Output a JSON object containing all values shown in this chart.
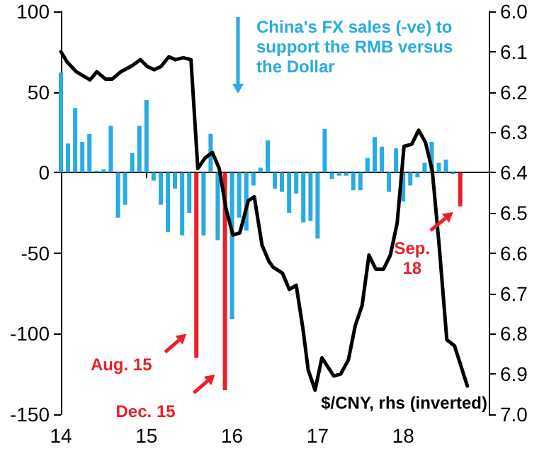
{
  "chart_data": {
    "type": "bar",
    "xlim": [
      2014,
      2019
    ],
    "xticks": [
      {
        "value": 2014,
        "label": "14"
      },
      {
        "value": 2015,
        "label": "15"
      },
      {
        "value": 2016,
        "label": "16"
      },
      {
        "value": 2017,
        "label": "17"
      },
      {
        "value": 2018,
        "label": "18"
      }
    ],
    "ylim": [
      -150,
      100
    ],
    "yticks": [
      -150,
      -100,
      -50,
      0,
      50,
      100
    ],
    "y2lim": [
      7.0,
      6.0
    ],
    "y2ticks": [
      {
        "value": 6.0,
        "label": "6.0"
      },
      {
        "value": 6.1,
        "label": "6.1"
      },
      {
        "value": 6.2,
        "label": "6.2"
      },
      {
        "value": 6.3,
        "label": "6.3"
      },
      {
        "value": 6.4,
        "label": "6.4"
      },
      {
        "value": 6.5,
        "label": "6.5"
      },
      {
        "value": 6.6,
        "label": "6.6"
      },
      {
        "value": 6.7,
        "label": "6.7"
      },
      {
        "value": 6.8,
        "label": "6.8"
      },
      {
        "value": 6.9,
        "label": "6.9"
      },
      {
        "value": 7.0,
        "label": "7.0"
      }
    ],
    "marker": "none",
    "line_style": "solid",
    "series": [
      {
        "name": "China's FX sales (-ve) to support the RMB versus the Dollar",
        "color": "#29abe2",
        "x": [
          2014.0,
          2014.083,
          2014.167,
          2014.25,
          2014.333,
          2014.417,
          2014.5,
          2014.583,
          2014.667,
          2014.75,
          2014.833,
          2014.917,
          2015.0,
          2015.083,
          2015.167,
          2015.25,
          2015.333,
          2015.417,
          2015.5,
          2015.583,
          2015.667,
          2015.75,
          2015.833,
          2015.917,
          2016.0,
          2016.083,
          2016.167,
          2016.25,
          2016.333,
          2016.417,
          2016.5,
          2016.583,
          2016.667,
          2016.75,
          2016.833,
          2016.917,
          2017.0,
          2017.083,
          2017.167,
          2017.25,
          2017.333,
          2017.417,
          2017.5,
          2017.583,
          2017.667,
          2017.75,
          2017.833,
          2017.917,
          2018.0,
          2018.083,
          2018.167,
          2018.25,
          2018.333,
          2018.417,
          2018.5,
          2018.583,
          2018.667
        ],
        "values": [
          62,
          18,
          40,
          19,
          24,
          1,
          2,
          29,
          -28,
          -20,
          12,
          29,
          45,
          -5,
          -20,
          -37,
          -10,
          -39,
          -25,
          -115,
          -39,
          24,
          -42,
          -135,
          -91,
          -28,
          -36,
          -8,
          3,
          20,
          -10,
          -12,
          -25,
          -13,
          -31,
          -30,
          -41,
          27,
          -4,
          -2,
          -2,
          -11,
          -11,
          9,
          22,
          16,
          -12,
          15,
          -18,
          -8,
          -3,
          6,
          19,
          6,
          8,
          -1,
          -21
        ],
        "colors": [
          "#29abe2",
          "#29abe2",
          "#29abe2",
          "#29abe2",
          "#29abe2",
          "#29abe2",
          "#29abe2",
          "#29abe2",
          "#29abe2",
          "#29abe2",
          "#29abe2",
          "#29abe2",
          "#29abe2",
          "#29abe2",
          "#29abe2",
          "#29abe2",
          "#29abe2",
          "#29abe2",
          "#29abe2",
          "#e8202a",
          "#29abe2",
          "#29abe2",
          "#29abe2",
          "#e8202a",
          "#29abe2",
          "#29abe2",
          "#29abe2",
          "#29abe2",
          "#29abe2",
          "#29abe2",
          "#29abe2",
          "#29abe2",
          "#29abe2",
          "#29abe2",
          "#29abe2",
          "#29abe2",
          "#29abe2",
          "#29abe2",
          "#29abe2",
          "#29abe2",
          "#29abe2",
          "#29abe2",
          "#29abe2",
          "#29abe2",
          "#29abe2",
          "#29abe2",
          "#29abe2",
          "#29abe2",
          "#29abe2",
          "#29abe2",
          "#29abe2",
          "#29abe2",
          "#29abe2",
          "#29abe2",
          "#29abe2",
          "#29abe2",
          "#e8202a"
        ]
      },
      {
        "type": "line",
        "axis": "y2",
        "name": "$/CNY, rhs (inverted)",
        "color": "#000000",
        "x": [
          2014.0,
          2014.07,
          2014.18,
          2014.34,
          2014.42,
          2014.52,
          2014.6,
          2014.7,
          2014.83,
          2014.93,
          2015.01,
          2015.09,
          2015.17,
          2015.26,
          2015.34,
          2015.43,
          2015.52,
          2015.6,
          2015.68,
          2015.77,
          2015.85,
          2015.93,
          2016.01,
          2016.09,
          2016.19,
          2016.26,
          2016.35,
          2016.43,
          2016.48,
          2016.59,
          2016.67,
          2016.75,
          2016.83,
          2016.89,
          2016.97,
          2017.05,
          2017.19,
          2017.27,
          2017.36,
          2017.44,
          2017.52,
          2017.6,
          2017.68,
          2017.77,
          2017.85,
          2017.93,
          2018.01,
          2018.1,
          2018.18,
          2018.26,
          2018.34,
          2018.42,
          2018.51,
          2018.6,
          2018.75
        ],
        "values": [
          6.1,
          6.125,
          6.15,
          6.17,
          6.15,
          6.168,
          6.168,
          6.15,
          6.135,
          6.12,
          6.137,
          6.145,
          6.137,
          6.113,
          6.12,
          6.115,
          6.12,
          6.39,
          6.365,
          6.35,
          6.39,
          6.49,
          6.555,
          6.55,
          6.47,
          6.46,
          6.58,
          6.62,
          6.635,
          6.65,
          6.69,
          6.68,
          6.79,
          6.89,
          6.94,
          6.86,
          6.905,
          6.9,
          6.865,
          6.78,
          6.73,
          6.605,
          6.64,
          6.64,
          6.605,
          6.525,
          6.335,
          6.33,
          6.295,
          6.325,
          6.395,
          6.58,
          6.815,
          6.83,
          6.93
        ]
      }
    ],
    "annotations": [
      {
        "text": "Aug. 15",
        "x": 2015.583,
        "y": -115
      },
      {
        "text": "Dec. 15",
        "x": 2015.917,
        "y": -135
      },
      {
        "text": "Sep. 18",
        "x": 2018.667,
        "y": -21
      }
    ]
  }
}
